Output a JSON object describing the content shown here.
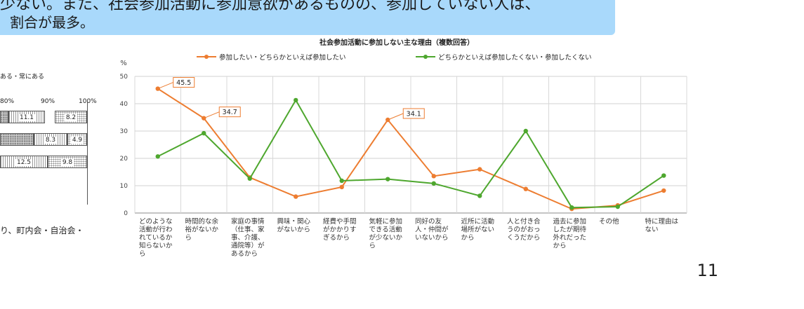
{
  "banner": {
    "line1": "少ない。また、社会参加活動に参加意欲があるものの、参加していない人は、",
    "line2": "割合が最多。"
  },
  "left_panel": {
    "legend_text": "ある・常にある",
    "axis_ticks": [
      "80%",
      "90%",
      "100%"
    ],
    "bar_rows": [
      {
        "values": [
          "11.1",
          "8.2"
        ]
      },
      {
        "values": [
          "8.3",
          "4.9"
        ]
      },
      {
        "values": [
          "12.5",
          "9.8"
        ]
      }
    ],
    "bottom_text": "り、町内会・自治会・"
  },
  "page_number": "11",
  "chart_data": {
    "type": "line",
    "title": "社会参加活動に参加しない主な理由（複数回答）",
    "ylabel": "%",
    "ylim": [
      0,
      50
    ],
    "yticks": [
      0,
      10,
      20,
      30,
      40,
      50
    ],
    "grid": true,
    "legend_position": "top",
    "categories": [
      [
        "どのような",
        "活動が行わ",
        "れているか",
        "知らないか",
        "ら"
      ],
      [
        "時間的な余",
        "裕がないか",
        "ら"
      ],
      [
        "家庭の事情",
        "（仕事、家",
        "事、介護、",
        "通院等）が",
        "あるから"
      ],
      [
        "興味・関心",
        "がないから"
      ],
      [
        "経費や手間",
        "がかかりす",
        "ぎるから"
      ],
      [
        "気軽に参加",
        "できる活動",
        "が少ないか",
        "ら"
      ],
      [
        "同好の友",
        "人・仲間が",
        "いないから"
      ],
      [
        "近所に活動",
        "場所がない",
        "から"
      ],
      [
        "人と付き合",
        "うのがおっ",
        "くうだから"
      ],
      [
        "過去に参加",
        "したが期待",
        "外れだった",
        "から"
      ],
      [
        "その他"
      ],
      [
        "特に理由は",
        "ない"
      ]
    ],
    "series": [
      {
        "name": "参加したい・どちらかといえば参加したい",
        "color": "#ed7d31",
        "values": [
          45.5,
          34.7,
          13.0,
          6.0,
          9.5,
          34.1,
          13.5,
          16.0,
          8.8,
          1.5,
          2.8,
          8.2
        ]
      },
      {
        "name": "どちらかといえば参加したくない・参加したくない",
        "color": "#4ea72e",
        "values": [
          20.7,
          29.2,
          12.6,
          41.3,
          11.8,
          12.4,
          10.8,
          6.3,
          30.0,
          2.0,
          2.3,
          13.7
        ]
      }
    ],
    "callouts": [
      {
        "series": 0,
        "index": 0,
        "text": "45.5"
      },
      {
        "series": 0,
        "index": 1,
        "text": "34.7"
      },
      {
        "series": 0,
        "index": 5,
        "text": "34.1"
      }
    ]
  }
}
